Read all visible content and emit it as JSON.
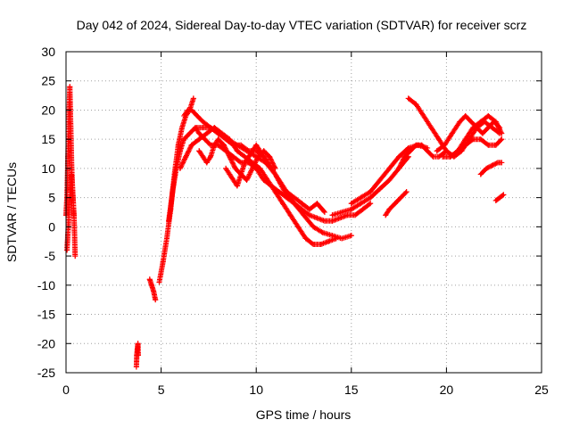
{
  "chart_data": {
    "type": "scatter",
    "title": "Day 042 of 2024, Sidereal Day-to-day VTEC variation (SDTVAR) for receiver scrz",
    "xlabel": "GPS time / hours",
    "ylabel": "SDTVAR / TECUs",
    "xlim": [
      0,
      25
    ],
    "ylim": [
      -25,
      30
    ],
    "xticks": [
      0,
      5,
      10,
      15,
      20,
      25
    ],
    "yticks": [
      -25,
      -20,
      -15,
      -10,
      -5,
      0,
      5,
      10,
      15,
      20,
      25,
      30
    ],
    "grid": true,
    "marker": "+",
    "colors": {
      "series": "#ff0000",
      "axis": "#000000",
      "grid": "#a0a0a0"
    },
    "series": [
      {
        "name": "seg-a",
        "x": [
          0.0,
          0.05,
          0.1,
          0.15,
          0.2,
          0.25,
          0.3,
          0.35,
          0.4
        ],
        "y": [
          2,
          5,
          12,
          18,
          24,
          17,
          10,
          6,
          2
        ]
      },
      {
        "name": "seg-b",
        "x": [
          0.05,
          0.12,
          0.2,
          0.28,
          0.35,
          0.42,
          0.48
        ],
        "y": [
          -4,
          0,
          5,
          9,
          6,
          2,
          -5
        ]
      },
      {
        "name": "seg-c",
        "x": [
          3.7,
          3.72,
          3.75,
          3.78,
          3.8
        ],
        "y": [
          -24,
          -22,
          -21,
          -20,
          -22
        ]
      },
      {
        "name": "seg-d",
        "x": [
          4.4,
          4.5,
          4.6,
          4.7
        ],
        "y": [
          -9,
          -10,
          -11,
          -12.5
        ]
      },
      {
        "name": "seg-e",
        "x": [
          4.9,
          5.1,
          5.3,
          5.5,
          5.7,
          5.9,
          6.1,
          6.3,
          6.5,
          6.7
        ],
        "y": [
          -9.5,
          -6,
          -2,
          3,
          9,
          14,
          17,
          19,
          20,
          22
        ]
      },
      {
        "name": "seg-f",
        "x": [
          5.4,
          5.6,
          5.8,
          6.0,
          6.2,
          6.5,
          6.8,
          7.2,
          7.6,
          8.0,
          8.5,
          9.0,
          9.5,
          10.0,
          10.5,
          11.0,
          11.5,
          12.0,
          12.5,
          13.0,
          13.5,
          14.0,
          14.5,
          15.0
        ],
        "y": [
          1,
          6,
          10,
          13,
          15,
          16,
          17,
          17,
          17,
          16,
          15,
          14,
          13,
          12,
          11,
          9,
          6,
          4,
          2,
          0,
          -1,
          -1.5,
          -2,
          -1.5
        ]
      },
      {
        "name": "seg-g",
        "x": [
          6.0,
          6.3,
          6.6,
          7.0,
          7.4,
          7.8,
          8.2,
          8.6,
          9.0,
          9.4,
          9.8,
          10.2,
          10.6,
          11.0,
          11.4,
          11.8,
          12.2,
          12.6,
          13.0,
          13.4,
          13.8,
          14.2
        ],
        "y": [
          10,
          12,
          14,
          15,
          16,
          17,
          16,
          15,
          13,
          12,
          11,
          10,
          8,
          6,
          4,
          2,
          0,
          -2,
          -3,
          -3,
          -2.5,
          -2
        ]
      },
      {
        "name": "seg-h",
        "x": [
          6.2,
          6.4,
          6.6,
          6.9,
          7.2,
          7.6,
          8.0,
          8.4,
          8.8,
          9.2,
          9.6,
          10.0,
          10.4,
          10.8,
          11.2,
          11.6,
          12.0,
          12.4,
          12.8,
          13.2,
          13.6
        ],
        "y": [
          19,
          20,
          20,
          19,
          18,
          17,
          16,
          15,
          14,
          14,
          13,
          13,
          12,
          10,
          8,
          6,
          5,
          4,
          3,
          4,
          2.5
        ]
      },
      {
        "name": "seg-i",
        "x": [
          6.8,
          7.0,
          7.3,
          7.6,
          8.0,
          8.4,
          8.8,
          9.2,
          9.6,
          10.0,
          10.4,
          10.8,
          11.2,
          11.6,
          12.0,
          12.4,
          12.8,
          13.2,
          13.6,
          14.0,
          14.4,
          14.8,
          15.2,
          15.6,
          16.0
        ],
        "y": [
          17,
          16,
          15,
          14,
          14,
          13,
          12,
          11,
          11,
          10,
          8,
          7,
          6,
          5,
          4,
          3,
          2,
          1.5,
          1,
          1,
          1.5,
          2,
          2,
          3,
          4
        ]
      },
      {
        "name": "seg-j",
        "x": [
          7.0,
          7.2,
          7.4,
          7.6,
          7.8,
          8.0,
          8.3,
          8.6,
          8.9,
          9.2,
          9.5,
          9.8,
          10.1,
          10.4,
          10.7,
          11.0
        ],
        "y": [
          13,
          12,
          11,
          12,
          14,
          15,
          14,
          12,
          10,
          9,
          8,
          10,
          12,
          13,
          12,
          10
        ]
      },
      {
        "name": "seg-k",
        "x": [
          8.4,
          8.6,
          8.8,
          9.0,
          9.2,
          9.4,
          9.6,
          9.8,
          10.0,
          10.2,
          10.4,
          10.6,
          10.8
        ],
        "y": [
          10,
          9,
          8,
          7,
          9,
          11,
          12,
          13,
          14,
          13,
          12,
          11,
          10
        ]
      },
      {
        "name": "seg-l",
        "x": [
          14.0,
          14.5,
          15.0,
          15.5,
          16.0,
          16.5,
          17.0,
          17.5,
          18.0
        ],
        "y": [
          2,
          2.5,
          3,
          4,
          5,
          6.5,
          8,
          10,
          12
        ]
      },
      {
        "name": "seg-m",
        "x": [
          15.0,
          15.5,
          16.0,
          16.5,
          17.0,
          17.5,
          18.0,
          18.5,
          19.0
        ],
        "y": [
          4,
          5,
          6,
          8,
          10,
          12,
          13.5,
          14,
          13.5
        ]
      },
      {
        "name": "seg-n",
        "x": [
          17.5,
          17.8,
          18.1,
          18.4,
          18.7,
          19.0,
          19.3,
          19.6,
          20.0
        ],
        "y": [
          10,
          12,
          13,
          14,
          14,
          13,
          12,
          12,
          13
        ]
      },
      {
        "name": "seg-o",
        "x": [
          16.8,
          17.0,
          17.3,
          17.6,
          17.9
        ],
        "y": [
          2,
          3,
          4,
          5,
          6
        ]
      },
      {
        "name": "seg-p",
        "x": [
          18.0,
          18.4,
          18.8,
          19.2,
          19.6,
          20.0,
          20.4,
          20.8,
          21.2,
          21.6,
          22.0,
          22.4,
          22.8
        ],
        "y": [
          22,
          21,
          19,
          17,
          15,
          13,
          12,
          13,
          15,
          17,
          18,
          17,
          16
        ]
      },
      {
        "name": "seg-q",
        "x": [
          19.5,
          19.9,
          20.3,
          20.7,
          21.0,
          21.3,
          21.6,
          21.9,
          22.2,
          22.5,
          22.8
        ],
        "y": [
          13,
          14,
          16,
          18,
          19,
          18,
          17,
          16,
          17,
          18,
          17
        ]
      },
      {
        "name": "seg-r",
        "x": [
          19.8,
          20.2,
          20.6,
          21.0,
          21.4,
          21.8,
          22.2,
          22.6,
          22.9
        ],
        "y": [
          12,
          12,
          13,
          15,
          17,
          18,
          19,
          18,
          16
        ]
      },
      {
        "name": "seg-s",
        "x": [
          20.2,
          20.6,
          21.0,
          21.4,
          21.8,
          22.2,
          22.6,
          22.9
        ],
        "y": [
          12,
          13,
          14,
          15,
          15,
          14,
          14,
          15
        ]
      },
      {
        "name": "seg-t",
        "x": [
          21.8,
          22.1,
          22.4,
          22.7,
          22.9
        ],
        "y": [
          9,
          10,
          10.5,
          11,
          11
        ]
      },
      {
        "name": "seg-u",
        "x": [
          22.6,
          22.8,
          23.0
        ],
        "y": [
          4.5,
          5,
          5.5
        ]
      }
    ]
  }
}
